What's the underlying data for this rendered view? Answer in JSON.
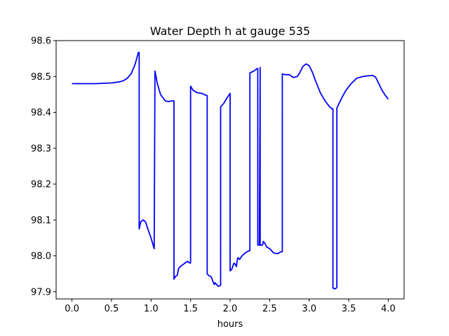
{
  "chart_data": {
    "type": "line",
    "title": "Water Depth h at gauge 535",
    "xlabel": "hours",
    "ylabel": "",
    "xlim": [
      -0.2,
      4.2
    ],
    "ylim": [
      97.88,
      98.6
    ],
    "xticks": [
      0.0,
      0.5,
      1.0,
      1.5,
      2.0,
      2.5,
      3.0,
      3.5,
      4.0
    ],
    "xtick_labels": [
      "0.0",
      "0.5",
      "1.0",
      "1.5",
      "2.0",
      "2.5",
      "3.0",
      "3.5",
      "4.0"
    ],
    "yticks": [
      97.9,
      98.0,
      98.1,
      98.2,
      98.3,
      98.4,
      98.5,
      98.6
    ],
    "ytick_labels": [
      "97.9",
      "98.0",
      "98.1",
      "98.2",
      "98.3",
      "98.4",
      "98.5",
      "98.6"
    ],
    "grid": false,
    "colors": {
      "line": "#0000ff",
      "axes": "#000000",
      "background": "#ffffff"
    },
    "series": [
      {
        "x": [
          0.0,
          0.3,
          0.5,
          0.6,
          0.65,
          0.7,
          0.75,
          0.8,
          0.84,
          0.85,
          0.85,
          0.87,
          0.9,
          0.93,
          0.96,
          1.0,
          1.04,
          1.05,
          1.08,
          1.12,
          1.18,
          1.22,
          1.26,
          1.28,
          1.29,
          1.29,
          1.31,
          1.33,
          1.35,
          1.37,
          1.4,
          1.43,
          1.46,
          1.49,
          1.5,
          1.5,
          1.53,
          1.58,
          1.64,
          1.7,
          1.71,
          1.71,
          1.73,
          1.76,
          1.78,
          1.8,
          1.81,
          1.83,
          1.85,
          1.88,
          1.88,
          1.92,
          1.96,
          2.0,
          2.0,
          2.0,
          2.02,
          2.04,
          2.05,
          2.06,
          2.08,
          2.09,
          2.1,
          2.12,
          2.15,
          2.19,
          2.22,
          2.25,
          2.25,
          2.3,
          2.33,
          2.34,
          2.35,
          2.35,
          2.37,
          2.38,
          2.38,
          2.41,
          2.42,
          2.44,
          2.46,
          2.5,
          2.55,
          2.6,
          2.63,
          2.66,
          2.66,
          2.7,
          2.75,
          2.8,
          2.85,
          2.88,
          2.92,
          2.96,
          3.0,
          3.04,
          3.08,
          3.14,
          3.2,
          3.26,
          3.29,
          3.3,
          3.3,
          3.33,
          3.35,
          3.35,
          3.4,
          3.46,
          3.53,
          3.6,
          3.68,
          3.75,
          3.8,
          3.84,
          3.88,
          3.92,
          3.96,
          4.0
        ],
        "y": [
          98.48,
          98.48,
          98.482,
          98.485,
          98.488,
          98.495,
          98.508,
          98.535,
          98.567,
          98.567,
          98.075,
          98.095,
          98.1,
          98.095,
          98.075,
          98.05,
          98.02,
          98.515,
          98.48,
          98.45,
          98.432,
          98.43,
          98.432,
          98.432,
          98.432,
          97.935,
          97.943,
          97.945,
          97.965,
          97.97,
          97.975,
          97.98,
          97.985,
          97.98,
          97.98,
          98.473,
          98.462,
          98.455,
          98.453,
          98.447,
          98.447,
          97.95,
          97.945,
          97.942,
          97.93,
          97.92,
          97.925,
          97.92,
          97.915,
          97.918,
          98.415,
          98.425,
          98.44,
          98.453,
          98.453,
          97.958,
          97.962,
          97.975,
          97.98,
          97.978,
          97.97,
          97.988,
          97.995,
          97.99,
          98.0,
          98.008,
          98.012,
          98.015,
          98.51,
          98.515,
          98.52,
          98.522,
          98.522,
          98.03,
          98.03,
          98.525,
          98.03,
          98.03,
          98.04,
          98.035,
          98.025,
          98.02,
          98.008,
          98.006,
          98.01,
          98.012,
          98.507,
          98.505,
          98.505,
          98.497,
          98.5,
          98.51,
          98.528,
          98.535,
          98.53,
          98.512,
          98.488,
          98.455,
          98.432,
          98.415,
          98.41,
          98.41,
          97.91,
          97.908,
          97.912,
          98.412,
          98.435,
          98.46,
          98.48,
          98.495,
          98.5,
          98.502,
          98.503,
          98.498,
          98.48,
          98.462,
          98.448,
          98.437
        ]
      }
    ]
  }
}
